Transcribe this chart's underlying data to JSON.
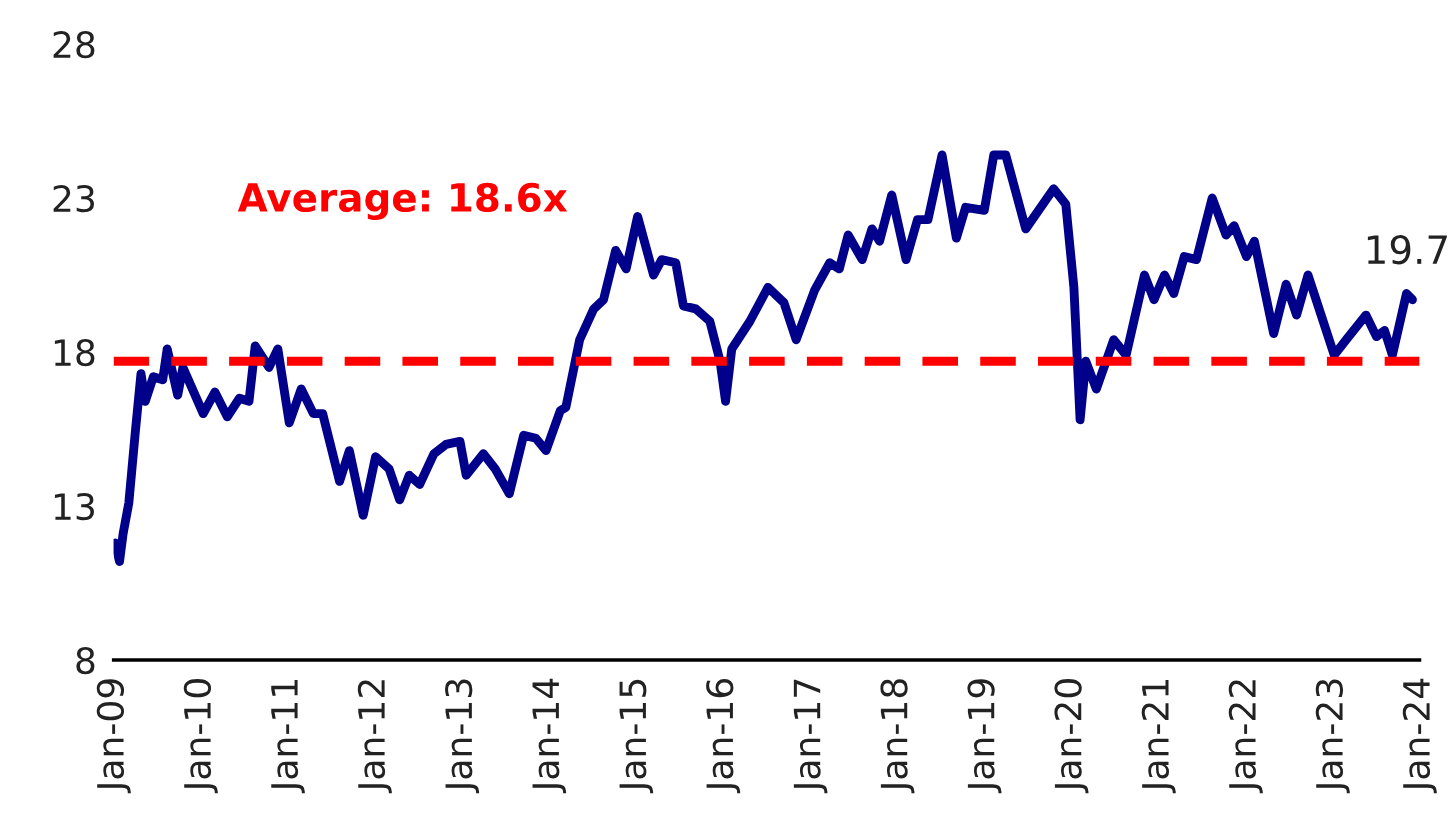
{
  "chart_data": {
    "type": "line",
    "x": [
      "2009-01-08",
      "2009-01-26",
      "2009-02-10",
      "2009-03-06",
      "2009-04-01",
      "2009-04-26",
      "2009-05-14",
      "2009-06-17",
      "2009-07-26",
      "2009-08-14",
      "2009-09-27",
      "2009-10-19",
      "2010-01-12",
      "2010-03-02",
      "2010-04-23",
      "2010-06-13",
      "2010-07-23",
      "2010-08-18",
      "2010-10-15",
      "2010-11-21",
      "2011-01-08",
      "2011-02-27",
      "2011-04-19",
      "2011-05-28",
      "2011-08-07",
      "2011-09-17",
      "2011-11-14",
      "2012-01-05",
      "2012-03-02",
      "2012-04-15",
      "2012-05-25",
      "2012-07-08",
      "2012-09-06",
      "2012-10-26",
      "2012-12-24",
      "2013-01-19",
      "2013-04-01",
      "2013-05-21",
      "2013-07-19",
      "2013-09-17",
      "2013-11-07",
      "2013-12-20",
      "2014-02-18",
      "2014-03-13",
      "2014-05-10",
      "2014-07-08",
      "2014-08-18",
      "2014-10-08",
      "2014-11-21",
      "2015-01-08",
      "2015-03-16",
      "2015-04-19",
      "2015-06-17",
      "2015-07-19",
      "2015-09-09",
      "2015-11-07",
      "2015-12-20",
      "2016-01-12",
      "2016-02-07",
      "2016-04-23",
      "2016-07-08",
      "2016-09-13",
      "2016-11-03",
      "2017-01-19",
      "2017-03-24",
      "2017-05-03",
      "2017-06-09",
      "2017-08-07",
      "2017-09-17",
      "2017-10-19",
      "2017-12-09",
      "2018-02-07",
      "2018-03-27",
      "2018-05-10",
      "2018-07-08",
      "2018-09-06",
      "2018-10-15",
      "2019-01-01",
      "2019-02-10",
      "2019-04-01",
      "2019-06-24",
      "2019-10-19",
      "2019-12-09",
      "2020-01-12",
      "2020-02-07",
      "2020-03-02",
      "2020-04-15",
      "2020-06-27",
      "2020-08-18",
      "2020-11-03",
      "2020-12-13",
      "2021-01-26",
      "2021-03-06",
      "2021-04-19",
      "2021-06-09",
      "2021-08-14",
      "2021-10-11",
      "2021-11-14",
      "2022-01-05",
      "2022-02-07",
      "2022-04-29",
      "2022-06-20",
      "2022-08-03",
      "2022-09-20",
      "2023-01-08",
      "2023-02-27",
      "2023-05-21",
      "2023-07-04",
      "2023-08-07",
      "2023-09-09",
      "2023-11-07",
      "2023-12-02"
    ],
    "series": [
      {
        "color": "#00008b",
        "values": [
          11.8,
          11.2,
          12.1,
          13.1,
          15.3,
          17.3,
          16.4,
          17.2,
          17.1,
          18.1,
          16.6,
          17.5,
          16.0,
          16.7,
          15.9,
          16.5,
          16.4,
          18.2,
          17.5,
          18.1,
          15.7,
          16.8,
          16.0,
          16.0,
          13.8,
          14.8,
          12.7,
          14.6,
          14.2,
          13.2,
          14.0,
          13.7,
          14.7,
          15.0,
          15.1,
          14.0,
          14.7,
          14.2,
          13.4,
          15.3,
          15.2,
          14.8,
          16.1,
          16.2,
          18.4,
          19.4,
          19.7,
          21.3,
          20.7,
          22.4,
          20.5,
          21.0,
          20.9,
          19.5,
          19.4,
          19.0,
          17.7,
          16.4,
          18.1,
          19.0,
          20.1,
          19.6,
          18.4,
          20.0,
          20.9,
          20.7,
          21.8,
          21.0,
          22.0,
          21.6,
          23.1,
          21.0,
          22.3,
          22.3,
          24.4,
          21.7,
          22.7,
          22.6,
          24.4,
          24.4,
          22.0,
          23.3,
          22.8,
          20.1,
          15.8,
          17.7,
          16.8,
          18.4,
          17.9,
          20.5,
          19.7,
          20.5,
          19.9,
          21.1,
          21.0,
          23.0,
          21.8,
          22.1,
          21.1,
          21.6,
          18.6,
          20.2,
          19.2,
          20.5,
          17.9,
          18.4,
          19.2,
          18.5,
          18.7,
          17.9,
          19.9,
          19.7
        ]
      }
    ],
    "xlim": [
      "2009-01-01",
      "2024-01-01"
    ],
    "xticks": [
      {
        "value": "2009-01",
        "label": "Jan-09"
      },
      {
        "value": "2010-01",
        "label": "Jan-10"
      },
      {
        "value": "2011-01",
        "label": "Jan-11"
      },
      {
        "value": "2012-01",
        "label": "Jan-12"
      },
      {
        "value": "2013-01",
        "label": "Jan-13"
      },
      {
        "value": "2014-01",
        "label": "Jan-14"
      },
      {
        "value": "2015-01",
        "label": "Jan-15"
      },
      {
        "value": "2016-01",
        "label": "Jan-16"
      },
      {
        "value": "2017-01",
        "label": "Jan-17"
      },
      {
        "value": "2018-01",
        "label": "Jan-18"
      },
      {
        "value": "2019-01",
        "label": "Jan-19"
      },
      {
        "value": "2020-01",
        "label": "Jan-20"
      },
      {
        "value": "2021-01",
        "label": "Jan-21"
      },
      {
        "value": "2022-01",
        "label": "Jan-22"
      },
      {
        "value": "2023-01",
        "label": "Jan-23"
      },
      {
        "value": "2024-01",
        "label": "Jan-24"
      }
    ],
    "ylim": [
      8,
      28
    ],
    "yticks": [
      8,
      13,
      18,
      23,
      28
    ],
    "ref_lines": [
      {
        "axis": "y",
        "value": 17.7,
        "color": "#ff0000",
        "line_style": "dashed"
      }
    ],
    "annotations": [
      "Average: 18.6x",
      {
        "text": "19.7",
        "x": "2023-12-02",
        "y": 19.7
      }
    ],
    "grid": false,
    "legend": false,
    "line_style": "solid"
  }
}
